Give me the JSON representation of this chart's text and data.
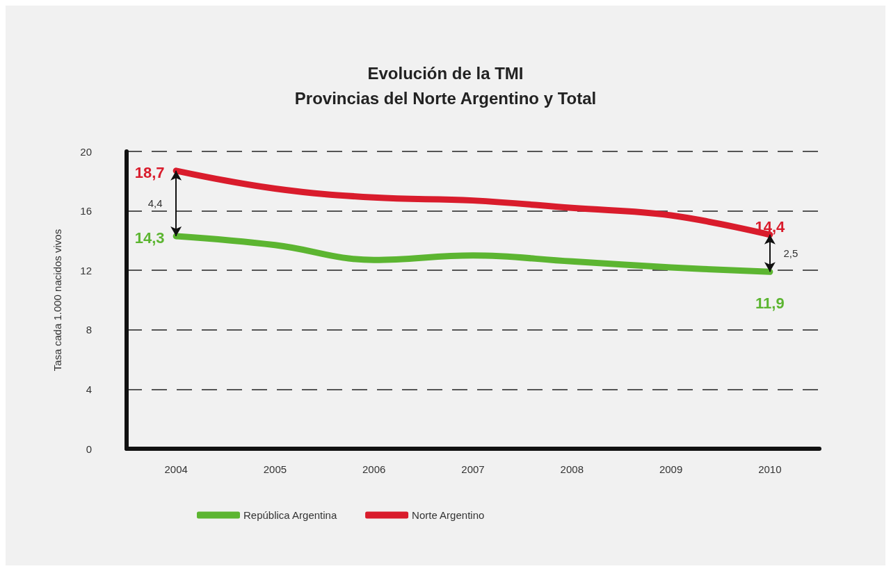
{
  "chart_data": {
    "type": "line",
    "title": "Evolución de la TMI",
    "subtitle": "Provincias del Norte Argentino y Total",
    "ylabel": "Tasa cada 1.000 nacidos vivos",
    "categories": [
      "2004",
      "2005",
      "2006",
      "2007",
      "2008",
      "2009",
      "2010"
    ],
    "series": [
      {
        "name": "República Argentina",
        "color": "#5cb531",
        "values": [
          14.3,
          13.7,
          12.7,
          13.0,
          12.6,
          12.2,
          11.9
        ],
        "value_labels": [
          "14,3",
          null,
          null,
          null,
          null,
          null,
          "11,9"
        ]
      },
      {
        "name": "Norte Argentino",
        "color": "#d91c2c",
        "values": [
          18.7,
          17.5,
          16.9,
          16.7,
          16.2,
          15.7,
          14.4
        ],
        "value_labels": [
          "18,7",
          null,
          null,
          null,
          null,
          null,
          "14,4"
        ]
      }
    ],
    "annotations": [
      "4,4",
      "2,5"
    ],
    "ylim": [
      0,
      20
    ],
    "yticks": [
      0,
      4,
      8,
      12,
      16,
      20
    ],
    "grid": "y",
    "legend": "bottom left",
    "marker": "none",
    "line_style": "solid"
  }
}
